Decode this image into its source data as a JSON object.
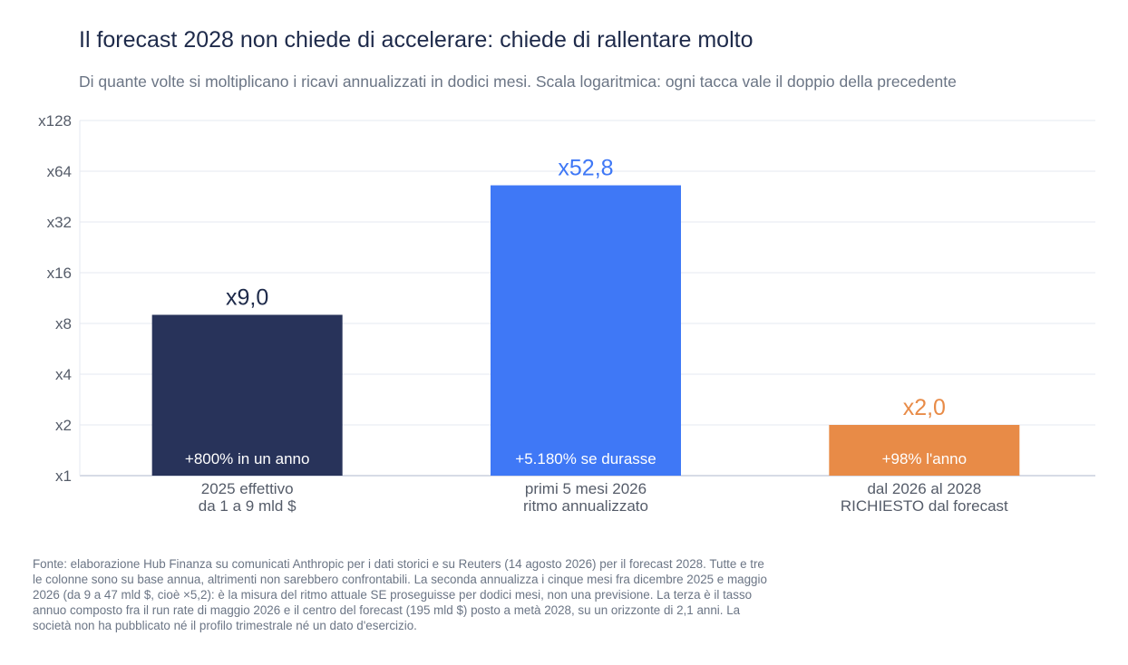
{
  "title": "Il forecast 2028 non chiede di accelerare: chiede di rallentare molto",
  "subtitle": "Di quante volte si moltiplicano i ricavi annualizzati in dodici mesi. Scala logaritmica: ogni tacca vale il doppio della precedente",
  "footnote": "Fonte: elaborazione Hub Finanza su comunicati Anthropic per i dati storici e su Reuters (14 agosto 2026) per il forecast 2028. Tutte e tre le colonne sono su base annua, altrimenti non sarebbero confrontabili. La seconda annualizza i cinque mesi fra dicembre 2025 e maggio 2026 (da 9 a 47 mld $, cioè ×5,2): è la misura del ritmo attuale SE proseguisse per dodici mesi, non una previsione. La terza è il tasso annuo composto fra il run rate di maggio 2026 e il centro del forecast (195 mld $) posto a metà 2028, su un orizzonte di 2,1 anni. La società non ha pubblicato né il profilo trimestrale né un dato d'esercizio.",
  "chart_data": {
    "type": "bar",
    "scale": "log2",
    "ylim": [
      1,
      128
    ],
    "y_ticks": [
      1,
      2,
      4,
      8,
      16,
      32,
      64,
      128
    ],
    "y_tick_labels": [
      "x1",
      "x2",
      "x4",
      "x8",
      "x16",
      "x32",
      "x64",
      "x128"
    ],
    "grid": true,
    "categories": [
      [
        "2025 effettivo",
        "da 1 a 9 mld $"
      ],
      [
        "primi 5 mesi 2026",
        "ritmo annualizzato"
      ],
      [
        "dal 2026 al 2028",
        "RICHIESTO dal forecast"
      ]
    ],
    "values": [
      9.0,
      52.8,
      2.0
    ],
    "value_labels": [
      "x9,0",
      "x52,8",
      "x2,0"
    ],
    "inner_labels": [
      "+800% in un anno",
      "+5.180% se durasse",
      "+98% l'anno"
    ],
    "colors": [
      "#28335a",
      "#3f78f6",
      "#e88b47"
    ],
    "label_colors": [
      "#1e2a4a",
      "#3f78f6",
      "#e88b47"
    ]
  }
}
